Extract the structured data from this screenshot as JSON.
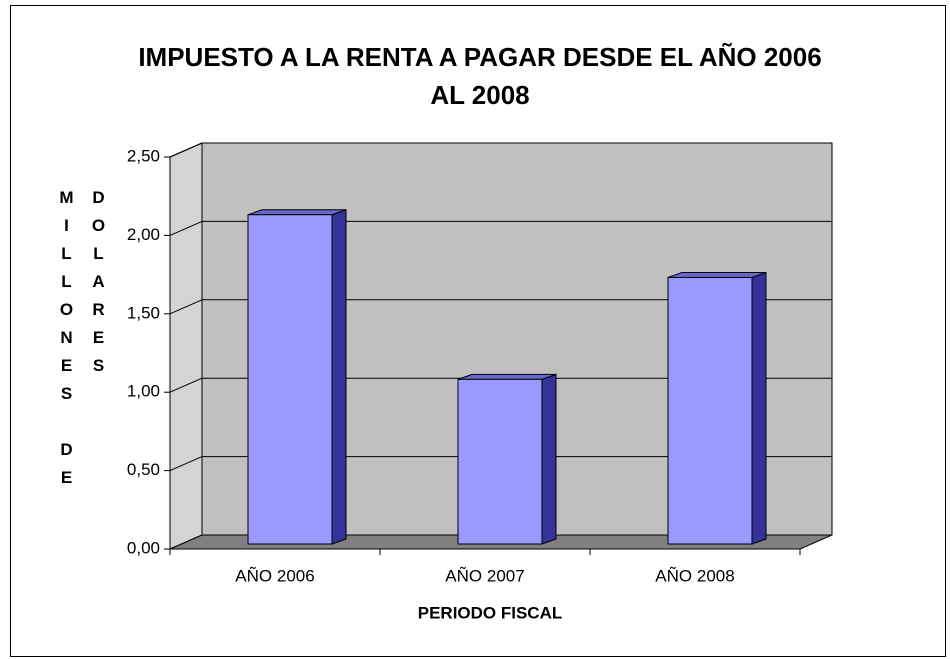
{
  "chart_data": {
    "type": "bar3d",
    "title": "IMPUESTO A LA RENTA A PAGAR DESDE EL AÑO 2006 AL 2008",
    "y_label": "MILLONES DE DOLARES",
    "x_label": "PERIODO FISCAL",
    "categories": [
      "AÑO 2006",
      "AÑO 2007",
      "AÑO 2008"
    ],
    "values": [
      2.1,
      1.05,
      1.7
    ],
    "color": "#9999ff",
    "ylim": [
      0,
      2.5
    ],
    "yticks": [
      {
        "value": 0,
        "label": "0,00"
      },
      {
        "value": 0.5,
        "label": "0,50"
      },
      {
        "value": 1,
        "label": "1,00"
      },
      {
        "value": 1.5,
        "label": "1,50"
      },
      {
        "value": 2,
        "label": "2,00"
      },
      {
        "value": 2.5,
        "label": "2,50"
      }
    ],
    "grid": true
  }
}
